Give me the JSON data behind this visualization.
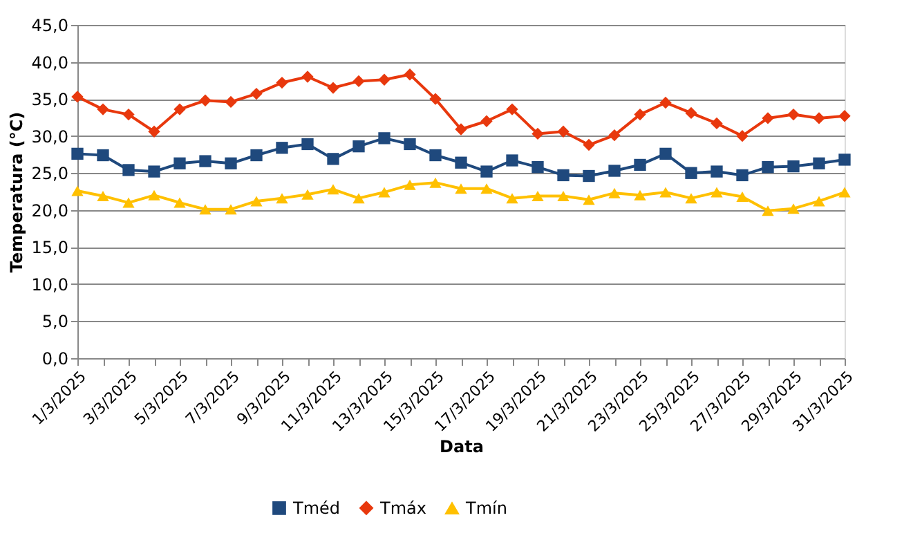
{
  "chart_data": {
    "type": "line",
    "xlabel": "Data",
    "ylabel": "Temperatura (°C)",
    "categories": [
      "1/3/2025",
      null,
      "3/3/2025",
      null,
      "5/3/2025",
      null,
      "7/3/2025",
      null,
      "9/3/2025",
      null,
      "11/3/2025",
      null,
      "13/3/2025",
      null,
      "15/3/2025",
      null,
      "17/3/2025",
      null,
      "19/3/2025",
      null,
      "21/3/2025",
      null,
      "23/3/2025",
      null,
      "25/3/2025",
      null,
      "27/3/2025",
      null,
      "29/3/2025",
      null,
      "31/3/2025"
    ],
    "series": [
      {
        "name": "Tméd",
        "color": "#1f497d",
        "marker": "square",
        "values": [
          27.6,
          27.4,
          25.4,
          25.2,
          26.3,
          26.6,
          26.3,
          27.4,
          28.4,
          28.9,
          26.9,
          28.6,
          29.7,
          28.9,
          27.4,
          26.4,
          25.2,
          26.7,
          25.8,
          24.7,
          24.6,
          25.3,
          26.1,
          27.6,
          25.0,
          25.2,
          24.7,
          25.8,
          25.9,
          26.3,
          26.8
        ]
      },
      {
        "name": "Tmáx",
        "color": "#e8380d",
        "marker": "diamond",
        "values": [
          35.3,
          33.6,
          32.9,
          30.6,
          33.6,
          34.8,
          34.6,
          35.7,
          37.2,
          38.0,
          36.5,
          37.4,
          37.6,
          38.3,
          35.0,
          30.9,
          32.0,
          33.6,
          30.3,
          30.6,
          28.8,
          30.1,
          32.9,
          34.5,
          33.1,
          31.7,
          30.0,
          32.4,
          32.9,
          32.4,
          32.7
        ]
      },
      {
        "name": "Tmín",
        "color": "#ffc000",
        "marker": "triangle",
        "values": [
          22.6,
          21.9,
          21.0,
          22.0,
          21.0,
          20.1,
          20.1,
          21.2,
          21.6,
          22.1,
          22.8,
          21.6,
          22.4,
          23.4,
          23.7,
          22.9,
          22.9,
          21.6,
          21.9,
          21.9,
          21.4,
          22.3,
          22.0,
          22.4,
          21.6,
          22.4,
          21.8,
          19.9,
          20.2,
          21.2,
          22.4
        ]
      }
    ],
    "ylim": [
      0,
      45
    ],
    "yticks": [
      {
        "value": 0,
        "label": "0,0"
      },
      {
        "value": 5,
        "label": "5,0"
      },
      {
        "value": 10,
        "label": "10,0"
      },
      {
        "value": 15,
        "label": "15,0"
      },
      {
        "value": 20,
        "label": "20,0"
      },
      {
        "value": 25,
        "label": "25,0"
      },
      {
        "value": 30,
        "label": "30,0"
      },
      {
        "value": 35,
        "label": "35,0"
      },
      {
        "value": 40,
        "label": "40,0"
      },
      {
        "value": 45,
        "label": "45,0"
      }
    ],
    "grid": "y",
    "legend": "bottom",
    "line_style": "solid"
  }
}
